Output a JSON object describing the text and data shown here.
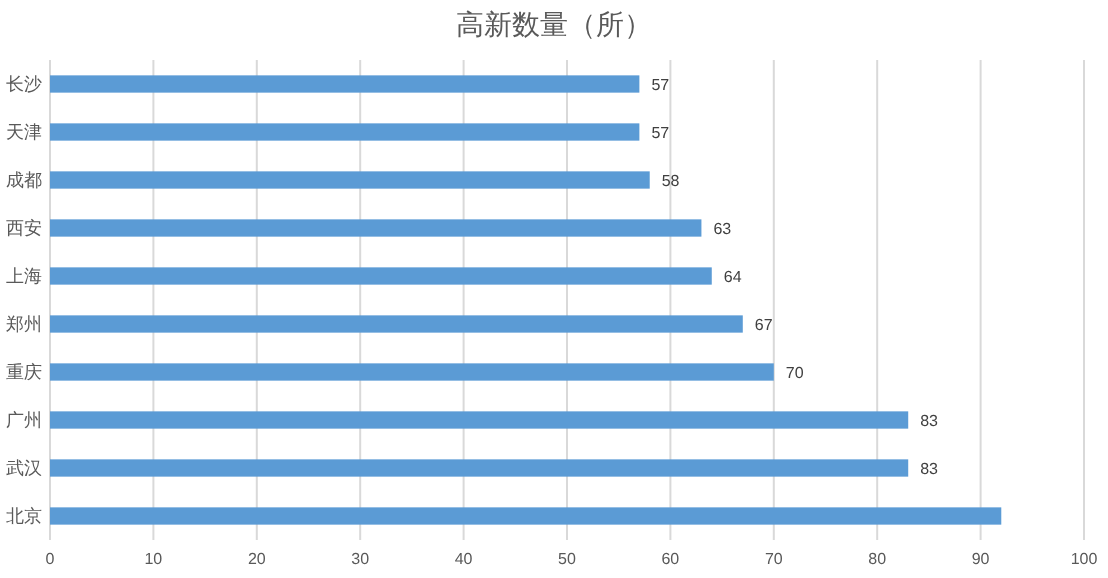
{
  "chart_data": {
    "type": "bar",
    "orientation": "horizontal",
    "title": "高新数量（所）",
    "categories": [
      "长沙",
      "天津",
      "成都",
      "西安",
      "上海",
      "郑州",
      "重庆",
      "广州",
      "武汉",
      "北京"
    ],
    "values": [
      57,
      57,
      58,
      63,
      64,
      67,
      70,
      83,
      83,
      92
    ],
    "value_labels": [
      "57",
      "57",
      "58",
      "63",
      "64",
      "67",
      "70",
      "83",
      "83",
      null
    ],
    "color": "#5b9bd5",
    "xlim": [
      0,
      100
    ],
    "xticks": [
      0,
      10,
      20,
      30,
      40,
      50,
      60,
      70,
      80,
      90,
      100
    ],
    "grid": "x"
  }
}
